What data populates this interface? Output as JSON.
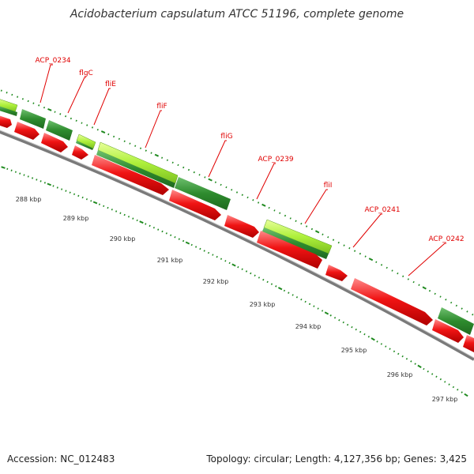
{
  "title": "Acidobacterium capsulatum ATCC 51196, complete genome",
  "footer": {
    "accession": "Accession: NC_012483",
    "stats": "Topology: circular; Length: 4,127,356 bp; Genes: 3,425"
  },
  "colors": {
    "label": "#e00000",
    "forward_gene_dark": "#2e8b2e",
    "forward_gene_light": "#aef03c",
    "reverse_gene": "#e81010",
    "backbone": "#7a7a7a",
    "tick": "#1f8a1f"
  },
  "gene_labels": [
    {
      "text": "ACP_0234"
    },
    {
      "text": "flgC"
    },
    {
      "text": "fliE"
    },
    {
      "text": "fliF"
    },
    {
      "text": "fliG"
    },
    {
      "text": "ACP_0239"
    },
    {
      "text": "fliI"
    },
    {
      "text": "ACP_0241"
    },
    {
      "text": "ACP_0242"
    }
  ],
  "kbp_ticks": [
    "288 kbp",
    "289 kbp",
    "290 kbp",
    "291 kbp",
    "292 kbp",
    "293 kbp",
    "294 kbp",
    "295 kbp",
    "296 kbp",
    "297 kbp"
  ]
}
